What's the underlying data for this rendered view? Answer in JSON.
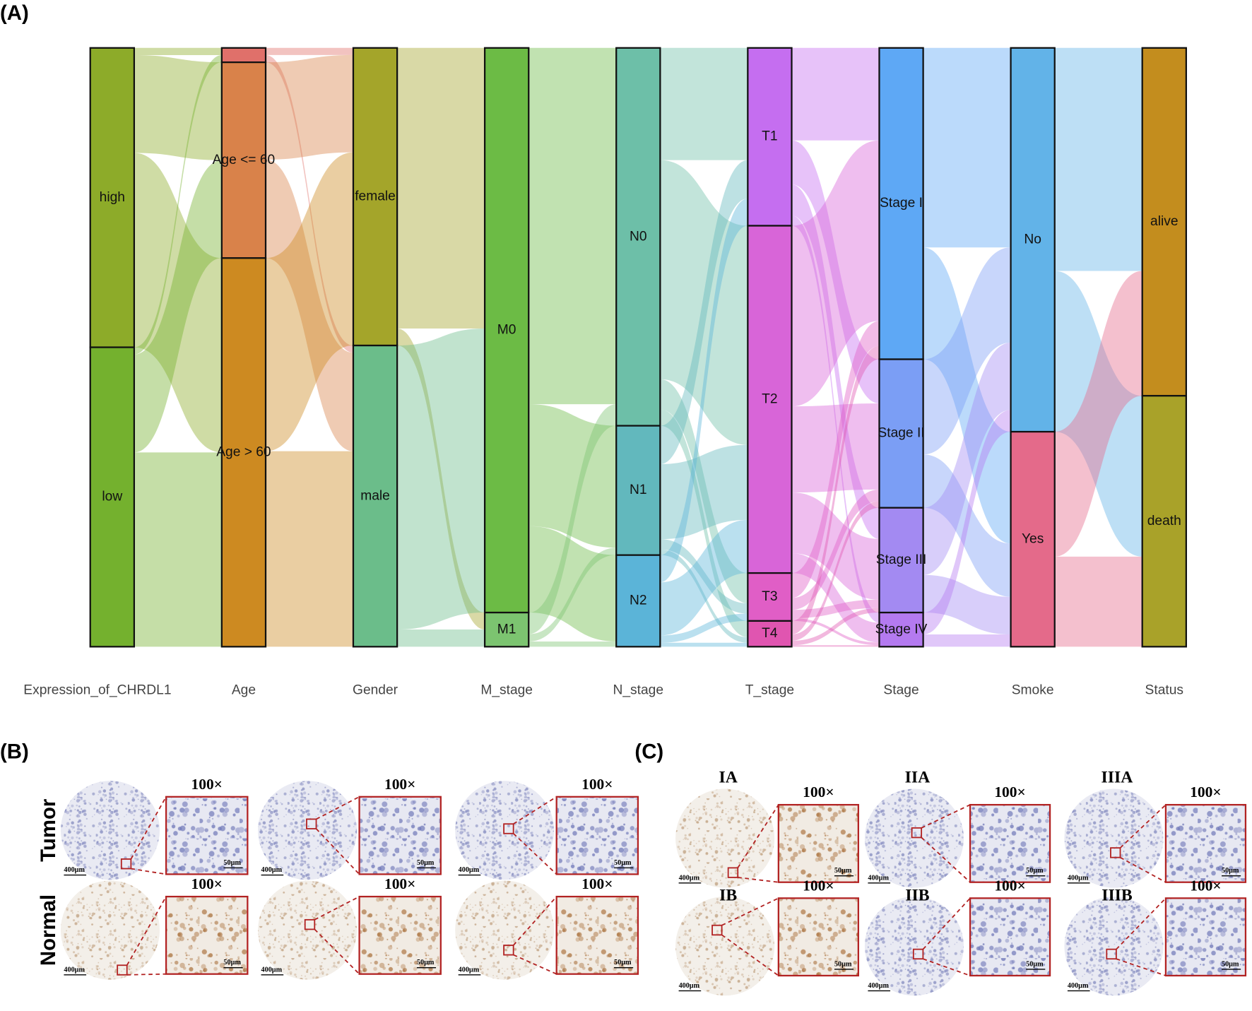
{
  "chart_data": {
    "type": "alluvial",
    "axes": [
      {
        "name": "Expression_of_CHRDL1",
        "nodes": [
          {
            "label": "high",
            "value": 50,
            "color": "#8dab29"
          },
          {
            "label": "low",
            "value": 50,
            "color": "#74b12e"
          }
        ]
      },
      {
        "name": "Age",
        "nodes": [
          {
            "label": null,
            "value": 2.4,
            "color": "#e0706a"
          },
          {
            "label": "Age <= 60",
            "value": 32.7,
            "color": "#d9824a"
          },
          {
            "label": "Age > 60",
            "value": 64.9,
            "color": "#cd8a21"
          }
        ]
      },
      {
        "name": "Gender",
        "nodes": [
          {
            "label": "female",
            "value": 49.7,
            "color": "#a4a52a"
          },
          {
            "label": "male",
            "value": 50.3,
            "color": "#6bbd8a"
          }
        ]
      },
      {
        "name": "M_stage",
        "nodes": [
          {
            "label": "M0",
            "value": 94.3,
            "color": "#6cbb45"
          },
          {
            "label": "M1",
            "value": 5.7,
            "color": "#7cc470"
          }
        ]
      },
      {
        "name": "N_stage",
        "nodes": [
          {
            "label": "N0",
            "value": 63.1,
            "color": "#6dbfa8"
          },
          {
            "label": "N1",
            "value": 21.6,
            "color": "#62b8bd"
          },
          {
            "label": "N2",
            "value": 15.3,
            "color": "#5bb4d8"
          }
        ]
      },
      {
        "name": "T_stage",
        "nodes": [
          {
            "label": "T1",
            "value": 29.7,
            "color": "#c56ef0"
          },
          {
            "label": "T2",
            "value": 58,
            "color": "#d865d8"
          },
          {
            "label": "T3",
            "value": 8,
            "color": "#e05ec6"
          },
          {
            "label": "T4",
            "value": 4.3,
            "color": "#e055b0"
          }
        ]
      },
      {
        "name": "Stage",
        "nodes": [
          {
            "label": "Stage I",
            "value": 52,
            "color": "#5ea8f5"
          },
          {
            "label": "Stage II",
            "value": 24.8,
            "color": "#7b9ef5"
          },
          {
            "label": "Stage III",
            "value": 17.5,
            "color": "#a38af2"
          },
          {
            "label": "Stage IV",
            "value": 5.7,
            "color": "#b47af0"
          }
        ]
      },
      {
        "name": "Smoke",
        "nodes": [
          {
            "label": "No",
            "value": 64.1,
            "color": "#62b3e8"
          },
          {
            "label": "Yes",
            "value": 35.9,
            "color": "#e46a8a"
          }
        ]
      },
      {
        "name": "Status",
        "nodes": [
          {
            "label": "alive",
            "value": 58.1,
            "color": "#c38d1e"
          },
          {
            "label": "death",
            "value": 41.9,
            "color": "#a9a229"
          }
        ]
      }
    ]
  },
  "panel_labels": [
    "(A)",
    "(B)",
    "(C)"
  ],
  "panel_b": {
    "row_labels": [
      "Tumor",
      "Normal"
    ],
    "cells": [
      {
        "magnification": "100×",
        "scale_tissue": "400µm",
        "scale_zoom": "50µm"
      },
      {
        "magnification": "100×",
        "scale_tissue": "400µm",
        "scale_zoom": "50µm"
      },
      {
        "magnification": "100×",
        "scale_tissue": "400µm",
        "scale_zoom": "50µm"
      },
      {
        "magnification": "100×",
        "scale_tissue": "400µm",
        "scale_zoom": "50µm"
      },
      {
        "magnification": "100×",
        "scale_tissue": "400µm",
        "scale_zoom": "50µm"
      },
      {
        "magnification": "100×",
        "scale_tissue": "400µm",
        "scale_zoom": "50µm"
      }
    ]
  },
  "panel_c": {
    "cells": [
      {
        "stage": "IA",
        "magnification": "100×",
        "scale_tissue": "400µm",
        "scale_zoom": "50µm"
      },
      {
        "stage": "IIA",
        "magnification": "100×",
        "scale_tissue": "400µm",
        "scale_zoom": "50µm"
      },
      {
        "stage": "IIIA",
        "magnification": "100×",
        "scale_tissue": "400µm",
        "scale_zoom": "50µm"
      },
      {
        "stage": "IB",
        "magnification": "100×",
        "scale_tissue": "400µm",
        "scale_zoom": "50µm"
      },
      {
        "stage": "IIB",
        "magnification": "100×",
        "scale_tissue": "400µm",
        "scale_zoom": "50µm"
      },
      {
        "stage": "IIIB",
        "magnification": "100×",
        "scale_tissue": "400µm",
        "scale_zoom": "50µm"
      }
    ]
  }
}
